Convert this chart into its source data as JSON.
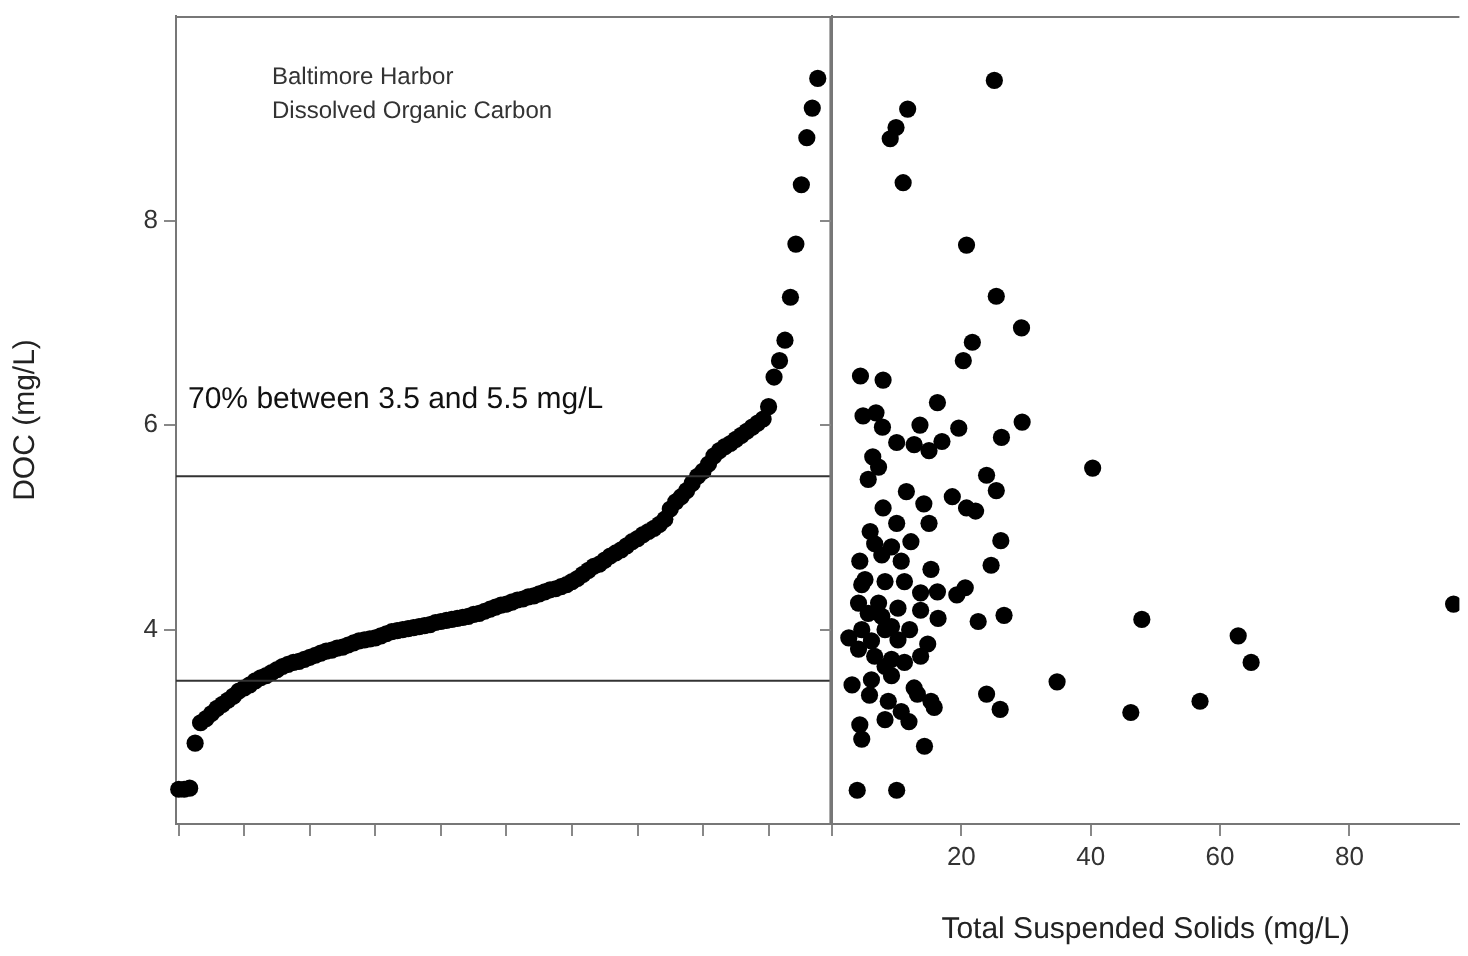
{
  "chart_data": [
    {
      "type": "scatter",
      "title": "Baltimore Harbor",
      "subtitle": "Dissolved Organic Carbon",
      "ylabel": "DOC (mg/L)",
      "annotations": [
        "70% between 3.5 and 5.5 mg/L"
      ],
      "categories": [
        null,
        null,
        null,
        null,
        null,
        null,
        null,
        null,
        null,
        null,
        null,
        null,
        null,
        null,
        null,
        null,
        null,
        null,
        null,
        null,
        null,
        null,
        null,
        null,
        null,
        null,
        null,
        null,
        null,
        null,
        null,
        null,
        null,
        null,
        null,
        null,
        null,
        null,
        null,
        null,
        null,
        null,
        null,
        null,
        null,
        null,
        null,
        null,
        null,
        null,
        null,
        null,
        null,
        null,
        null,
        null,
        null,
        null,
        null,
        null,
        null,
        null,
        null,
        null,
        null,
        null,
        null,
        null,
        null,
        null,
        null,
        null,
        null,
        null,
        null,
        null,
        null,
        null,
        null,
        null,
        null,
        null,
        null,
        null,
        null,
        null,
        null,
        null,
        null,
        null,
        null,
        null,
        null,
        null,
        null,
        null,
        null,
        null,
        null,
        null,
        null,
        null,
        null,
        null,
        null,
        null,
        null,
        null,
        null,
        null,
        null,
        null,
        null,
        null,
        null,
        null,
        null,
        null,
        null,
        null
      ],
      "values": [
        2.44,
        2.44,
        2.45,
        2.89,
        3.09,
        3.13,
        3.18,
        3.23,
        3.27,
        3.31,
        3.35,
        3.4,
        3.43,
        3.46,
        3.5,
        3.53,
        3.55,
        3.58,
        3.61,
        3.64,
        3.66,
        3.68,
        3.69,
        3.71,
        3.73,
        3.75,
        3.77,
        3.79,
        3.8,
        3.82,
        3.83,
        3.85,
        3.87,
        3.89,
        3.9,
        3.91,
        3.92,
        3.94,
        3.96,
        3.98,
        3.99,
        4.0,
        4.01,
        4.02,
        4.03,
        4.04,
        4.05,
        4.07,
        4.08,
        4.09,
        4.1,
        4.11,
        4.12,
        4.13,
        4.15,
        4.16,
        4.18,
        4.2,
        4.22,
        4.24,
        4.25,
        4.27,
        4.29,
        4.3,
        4.32,
        4.33,
        4.35,
        4.37,
        4.39,
        4.4,
        4.42,
        4.44,
        4.47,
        4.5,
        4.54,
        4.58,
        4.62,
        4.64,
        4.68,
        4.72,
        4.75,
        4.78,
        4.82,
        4.86,
        4.89,
        4.93,
        4.96,
        4.99,
        5.03,
        5.08,
        5.18,
        5.25,
        5.3,
        5.36,
        5.43,
        5.5,
        5.55,
        5.62,
        5.7,
        5.75,
        5.79,
        5.82,
        5.86,
        5.9,
        5.94,
        5.98,
        6.02,
        6.06,
        6.18,
        6.47,
        6.63,
        6.83,
        7.25,
        7.77,
        8.35,
        8.81,
        9.1,
        9.39,
        null,
        null
      ],
      "color": "#000000",
      "marker": "circle",
      "ylim": [
        2.1,
        10
      ],
      "yticks": [
        4,
        6,
        8
      ],
      "grid": false,
      "tick_labels": "y",
      "ref_lines": [
        {
          "axis": "y",
          "value": 3.5,
          "color": "#333333"
        },
        {
          "axis": "y",
          "value": 5.5,
          "color": "#333333"
        }
      ]
    },
    {
      "type": "scatter",
      "xlabel": "Total Suspended Solids (mg/L)",
      "x": [
        25.1,
        11.7,
        9.9,
        9.0,
        11.0,
        20.8,
        25.4,
        29.3,
        21.7,
        20.3,
        4.4,
        7.9,
        16.3,
        4.8,
        6.8,
        7.8,
        13.6,
        19.6,
        29.4,
        26.2,
        10.0,
        12.7,
        15.0,
        17.0,
        6.3,
        7.2,
        5.6,
        40.3,
        23.9,
        25.4,
        11.5,
        14.2,
        18.6,
        20.8,
        22.2,
        7.9,
        5.9,
        10.0,
        15.0,
        26.1,
        12.2,
        4.3,
        7.7,
        10.7,
        24.6,
        15.3,
        11.2,
        4.6,
        8.2,
        13.7,
        16.3,
        19.3,
        20.6,
        4.1,
        7.2,
        10.2,
        13.7,
        16.4,
        26.6,
        22.6,
        47.9,
        96.1,
        2.6,
        4.6,
        6.1,
        8.2,
        10.2,
        12.0,
        4.1,
        6.6,
        9.2,
        11.2,
        13.7,
        14.8,
        62.8,
        64.8,
        6.1,
        9.2,
        3.1,
        34.8,
        12.7,
        13.2,
        5.8,
        23.9,
        8.7,
        15.3,
        15.8,
        26.0,
        46.2,
        56.9,
        10.7,
        8.2,
        11.9,
        4.3,
        4.6,
        14.3,
        3.9,
        10.0,
        5.6,
        7.7,
        9.2,
        5.1,
        6.6,
        9.2,
        8.2
      ],
      "values": [
        9.37,
        9.09,
        8.91,
        8.8,
        8.37,
        7.76,
        7.26,
        6.95,
        6.81,
        6.63,
        6.48,
        6.44,
        6.22,
        6.09,
        6.12,
        5.98,
        6.0,
        5.97,
        6.03,
        5.88,
        5.83,
        5.81,
        5.75,
        5.84,
        5.69,
        5.59,
        5.47,
        5.58,
        5.51,
        5.36,
        5.35,
        5.23,
        5.3,
        5.19,
        5.16,
        5.19,
        4.96,
        5.04,
        5.04,
        4.87,
        4.86,
        4.67,
        4.73,
        4.67,
        4.63,
        4.59,
        4.47,
        4.44,
        4.47,
        4.36,
        4.37,
        4.34,
        4.41,
        4.26,
        4.26,
        4.21,
        4.19,
        4.11,
        4.14,
        4.08,
        4.1,
        4.25,
        3.92,
        4.0,
        3.89,
        4.0,
        3.9,
        4.0,
        3.81,
        3.74,
        3.71,
        3.68,
        3.74,
        3.86,
        3.94,
        3.68,
        3.51,
        3.55,
        3.46,
        3.49,
        3.43,
        3.37,
        3.36,
        3.37,
        3.3,
        3.3,
        3.24,
        3.22,
        3.19,
        3.3,
        3.2,
        3.12,
        3.1,
        3.07,
        2.93,
        2.86,
        2.43,
        2.43,
        4.16,
        4.13,
        4.03,
        4.49,
        4.84,
        4.81,
        3.64
      ],
      "color": "#000000",
      "marker": "circle",
      "xlim": [
        0,
        97
      ],
      "xticks": [
        {
          "value": 0,
          "label": null
        },
        20,
        40,
        60,
        80
      ],
      "ylim": [
        2.1,
        10
      ],
      "yticks": [
        4,
        6,
        8
      ],
      "grid": false,
      "tick_labels": "x"
    }
  ]
}
